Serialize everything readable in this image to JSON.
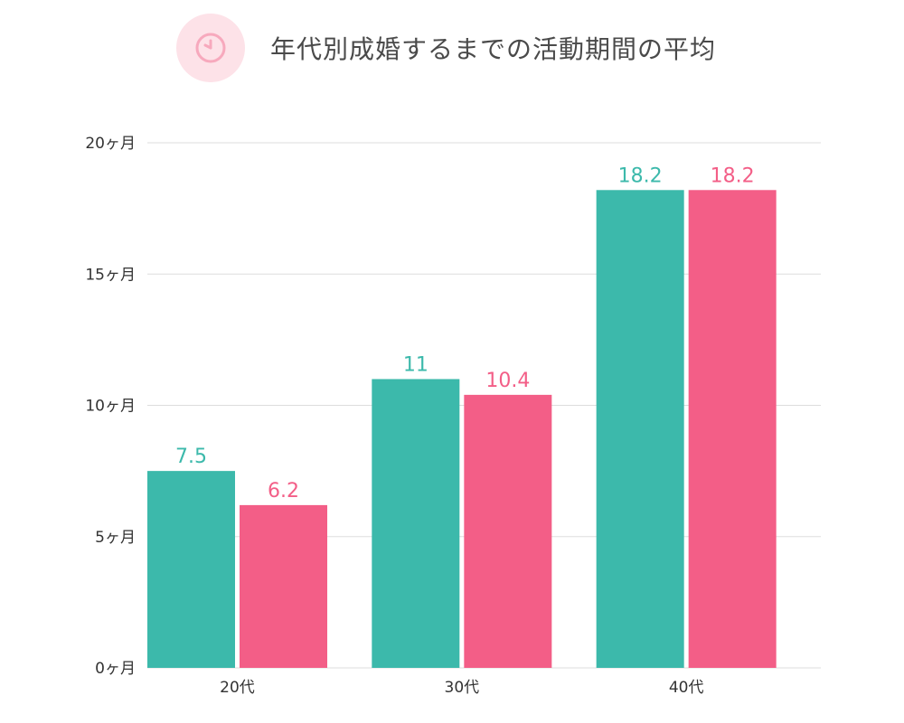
{
  "title": "年代別成婚するまでの活動期間の平均",
  "icon": "clock-icon",
  "colors": {
    "series_a": "#3cb9ab",
    "series_b": "#f35e87",
    "grid": "#dddddd",
    "badge_bg": "#fde2e8",
    "badge_fg": "#f7a9bd"
  },
  "chart_data": {
    "type": "bar",
    "title": "年代別成婚するまでの活動期間の平均",
    "categories": [
      "20代",
      "30代",
      "40代"
    ],
    "series": [
      {
        "values": [
          7.5,
          11,
          18.2
        ]
      },
      {
        "values": [
          6.2,
          10.4,
          18.2
        ]
      }
    ],
    "value_labels": [
      [
        "7.5",
        "11",
        "18.2"
      ],
      [
        "6.2",
        "10.4",
        "18.2"
      ]
    ],
    "y_ticks": [
      0,
      5,
      10,
      15,
      20
    ],
    "y_tick_labels": [
      "0ヶ月",
      "5ヶ月",
      "10ヶ月",
      "15ヶ月",
      "20ヶ月"
    ],
    "ylim": [
      0,
      20
    ],
    "grid": true,
    "xlabel": "",
    "ylabel": ""
  }
}
